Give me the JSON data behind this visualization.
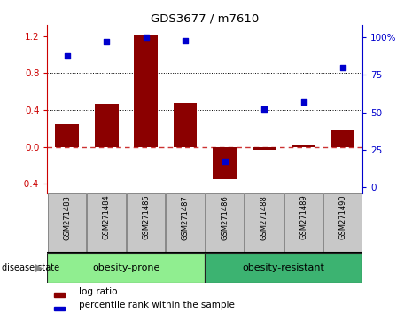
{
  "title": "GDS3677 / m7610",
  "samples": [
    "GSM271483",
    "GSM271484",
    "GSM271485",
    "GSM271487",
    "GSM271486",
    "GSM271488",
    "GSM271489",
    "GSM271490"
  ],
  "log_ratio": [
    0.25,
    0.47,
    1.21,
    0.48,
    -0.35,
    -0.03,
    0.03,
    0.18
  ],
  "percentile": [
    88,
    97,
    100,
    98,
    17,
    52,
    57,
    80
  ],
  "bar_color": "#8B0000",
  "dot_color": "#0000CD",
  "ylim_left": [
    -0.5,
    1.32
  ],
  "ylim_right": [
    -4.17,
    108.33
  ],
  "yticks_left": [
    -0.4,
    0.0,
    0.4,
    0.8,
    1.2
  ],
  "yticks_right": [
    0,
    25,
    50,
    75,
    100
  ],
  "hlines": [
    0.4,
    0.8
  ],
  "groups": [
    {
      "label": "obesity-prone",
      "indices": [
        0,
        1,
        2,
        3
      ],
      "color": "#90EE90"
    },
    {
      "label": "obesity-resistant",
      "indices": [
        4,
        5,
        6,
        7
      ],
      "color": "#3CB371"
    }
  ],
  "group_label": "disease state",
  "legend_items": [
    {
      "label": "log ratio",
      "color": "#8B0000"
    },
    {
      "label": "percentile rank within the sample",
      "color": "#0000CD"
    }
  ],
  "bar_width": 0.6,
  "zero_line_color": "#CC3333",
  "bg_color": "#FFFFFF",
  "sample_box_color": "#C8C8C8"
}
